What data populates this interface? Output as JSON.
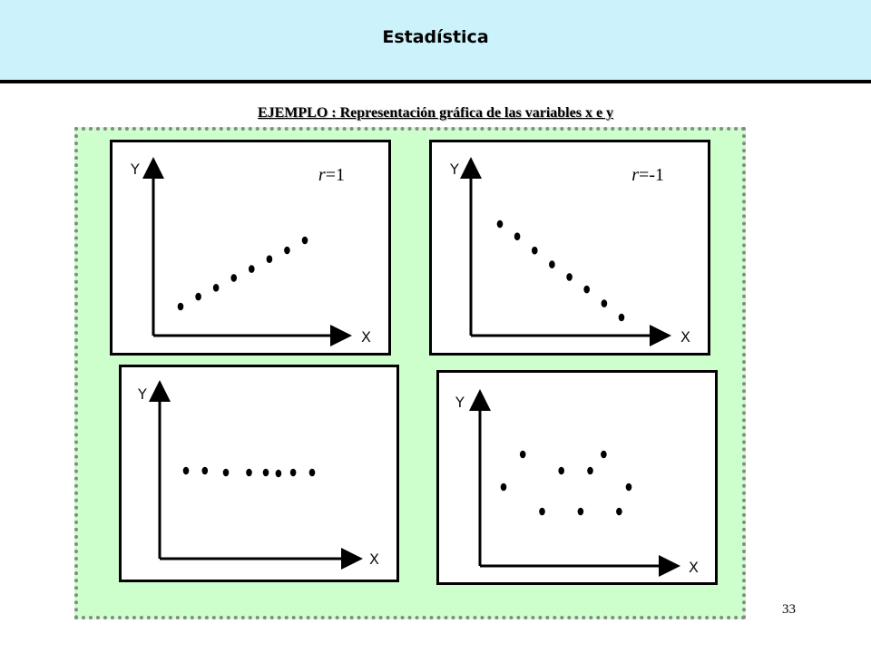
{
  "header": {
    "title": "Estadística"
  },
  "subtitle": "EJEMPLO : Representación gráfica de las variables x e y",
  "page_number": "33",
  "colors": {
    "header_bg": "#ccf2fb",
    "panel_bg": "#ccffcc",
    "panel_border": "#888888"
  },
  "chart_data": [
    {
      "type": "scatter",
      "title": "",
      "xlabel": "X",
      "ylabel": "Y",
      "annotation": "r=1",
      "x": [
        1,
        2,
        3,
        4,
        5,
        6,
        7,
        8
      ],
      "y": [
        1.0,
        1.9,
        2.7,
        3.6,
        4.4,
        5.3,
        6.1,
        7.0
      ]
    },
    {
      "type": "scatter",
      "title": "",
      "xlabel": "X",
      "ylabel": "Y",
      "annotation": "r=-1",
      "x": [
        1,
        2,
        3,
        4,
        5,
        6,
        7,
        8
      ],
      "y": [
        7.0,
        6.2,
        5.3,
        4.4,
        3.6,
        2.8,
        1.9,
        1.0
      ]
    },
    {
      "type": "scatter",
      "title": "",
      "xlabel": "X",
      "ylabel": "Y",
      "annotation": "",
      "x": [
        1.0,
        1.9,
        2.9,
        4.0,
        4.8,
        5.4,
        6.1,
        7.0
      ],
      "y": [
        4.0,
        4.0,
        3.9,
        3.9,
        3.9,
        3.85,
        3.9,
        3.9
      ]
    },
    {
      "type": "scatter",
      "title": "",
      "xlabel": "X",
      "ylabel": "Y",
      "annotation": "",
      "x": [
        1.0,
        2.0,
        3.0,
        4.0,
        5.0,
        5.5,
        6.2,
        7.0,
        7.5
      ],
      "y": [
        3.0,
        5.0,
        1.5,
        4.0,
        1.5,
        4.0,
        5.0,
        1.5,
        3.0
      ]
    }
  ]
}
